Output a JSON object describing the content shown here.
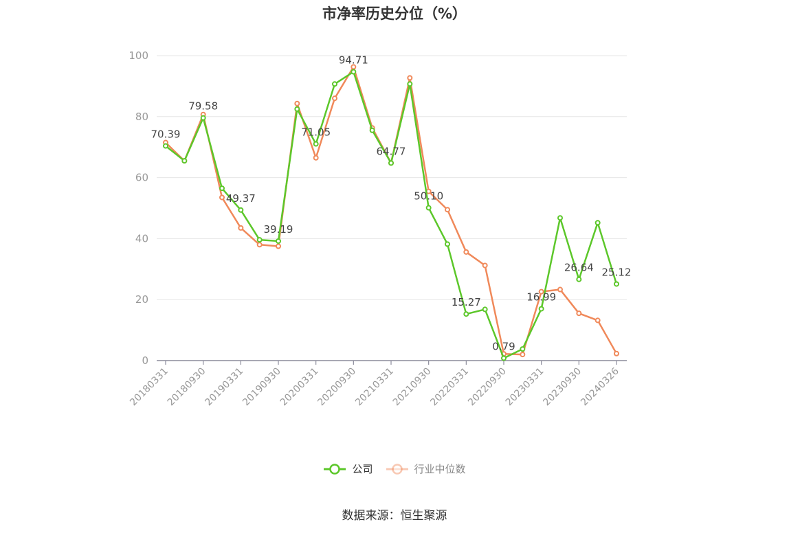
{
  "title": "市净率历史分位（%）",
  "source": "数据来源：恒生聚源",
  "colors": {
    "company": "#5cc72a",
    "industry": "#f0895a",
    "grid": "#e6e6e6",
    "axis": "#999999",
    "label": "#444444"
  },
  "chart_data": {
    "type": "line",
    "title": "市净率历史分位（%）",
    "ylim": [
      0,
      100
    ],
    "yticks": [
      0,
      20,
      40,
      60,
      80,
      100
    ],
    "grid": true,
    "legend_position": "bottom",
    "xtick_labels": [
      "20180331",
      "20180930",
      "20190331",
      "20190930",
      "20200331",
      "20200930",
      "20210331",
      "20210930",
      "20220331",
      "20220930",
      "20230331",
      "20230930",
      "20240326"
    ],
    "xtick_index": [
      0,
      2,
      4,
      6,
      8,
      10,
      12,
      14,
      16,
      18,
      20,
      22,
      24
    ],
    "series": [
      {
        "name": "公司",
        "color": "#5cc72a",
        "values": [
          70.39,
          65.5,
          79.58,
          56.5,
          49.37,
          39.6,
          39.19,
          82.5,
          71.05,
          90.7,
          94.71,
          75.5,
          64.77,
          90.7,
          50.1,
          38.2,
          15.27,
          16.8,
          0.79,
          3.8,
          16.99,
          46.8,
          26.64,
          45.2,
          25.12
        ]
      },
      {
        "name": "行业中位数",
        "color": "#f0895a",
        "values": [
          71.5,
          65.5,
          80.7,
          53.5,
          43.5,
          38.0,
          37.5,
          84.3,
          66.5,
          86.0,
          96.3,
          76.3,
          64.8,
          92.7,
          55.5,
          49.5,
          35.6,
          31.2,
          2.2,
          2.0,
          22.6,
          23.3,
          15.5,
          13.2,
          2.3
        ]
      }
    ],
    "data_labels": [
      {
        "index": 0,
        "text": "70.39"
      },
      {
        "index": 2,
        "text": "79.58"
      },
      {
        "index": 4,
        "text": "49.37"
      },
      {
        "index": 6,
        "text": "39.19"
      },
      {
        "index": 8,
        "text": "71.05"
      },
      {
        "index": 10,
        "text": "94.71"
      },
      {
        "index": 12,
        "text": "64.77"
      },
      {
        "index": 14,
        "text": "50.10"
      },
      {
        "index": 16,
        "text": "15.27"
      },
      {
        "index": 18,
        "text": "0.79"
      },
      {
        "index": 20,
        "text": "16.99"
      },
      {
        "index": 22,
        "text": "26.64"
      },
      {
        "index": 24,
        "text": "25.12"
      }
    ]
  },
  "legend": [
    {
      "label": "公司",
      "color": "#5cc72a"
    },
    {
      "label": "行业中位数",
      "color": "#f0895a"
    }
  ]
}
